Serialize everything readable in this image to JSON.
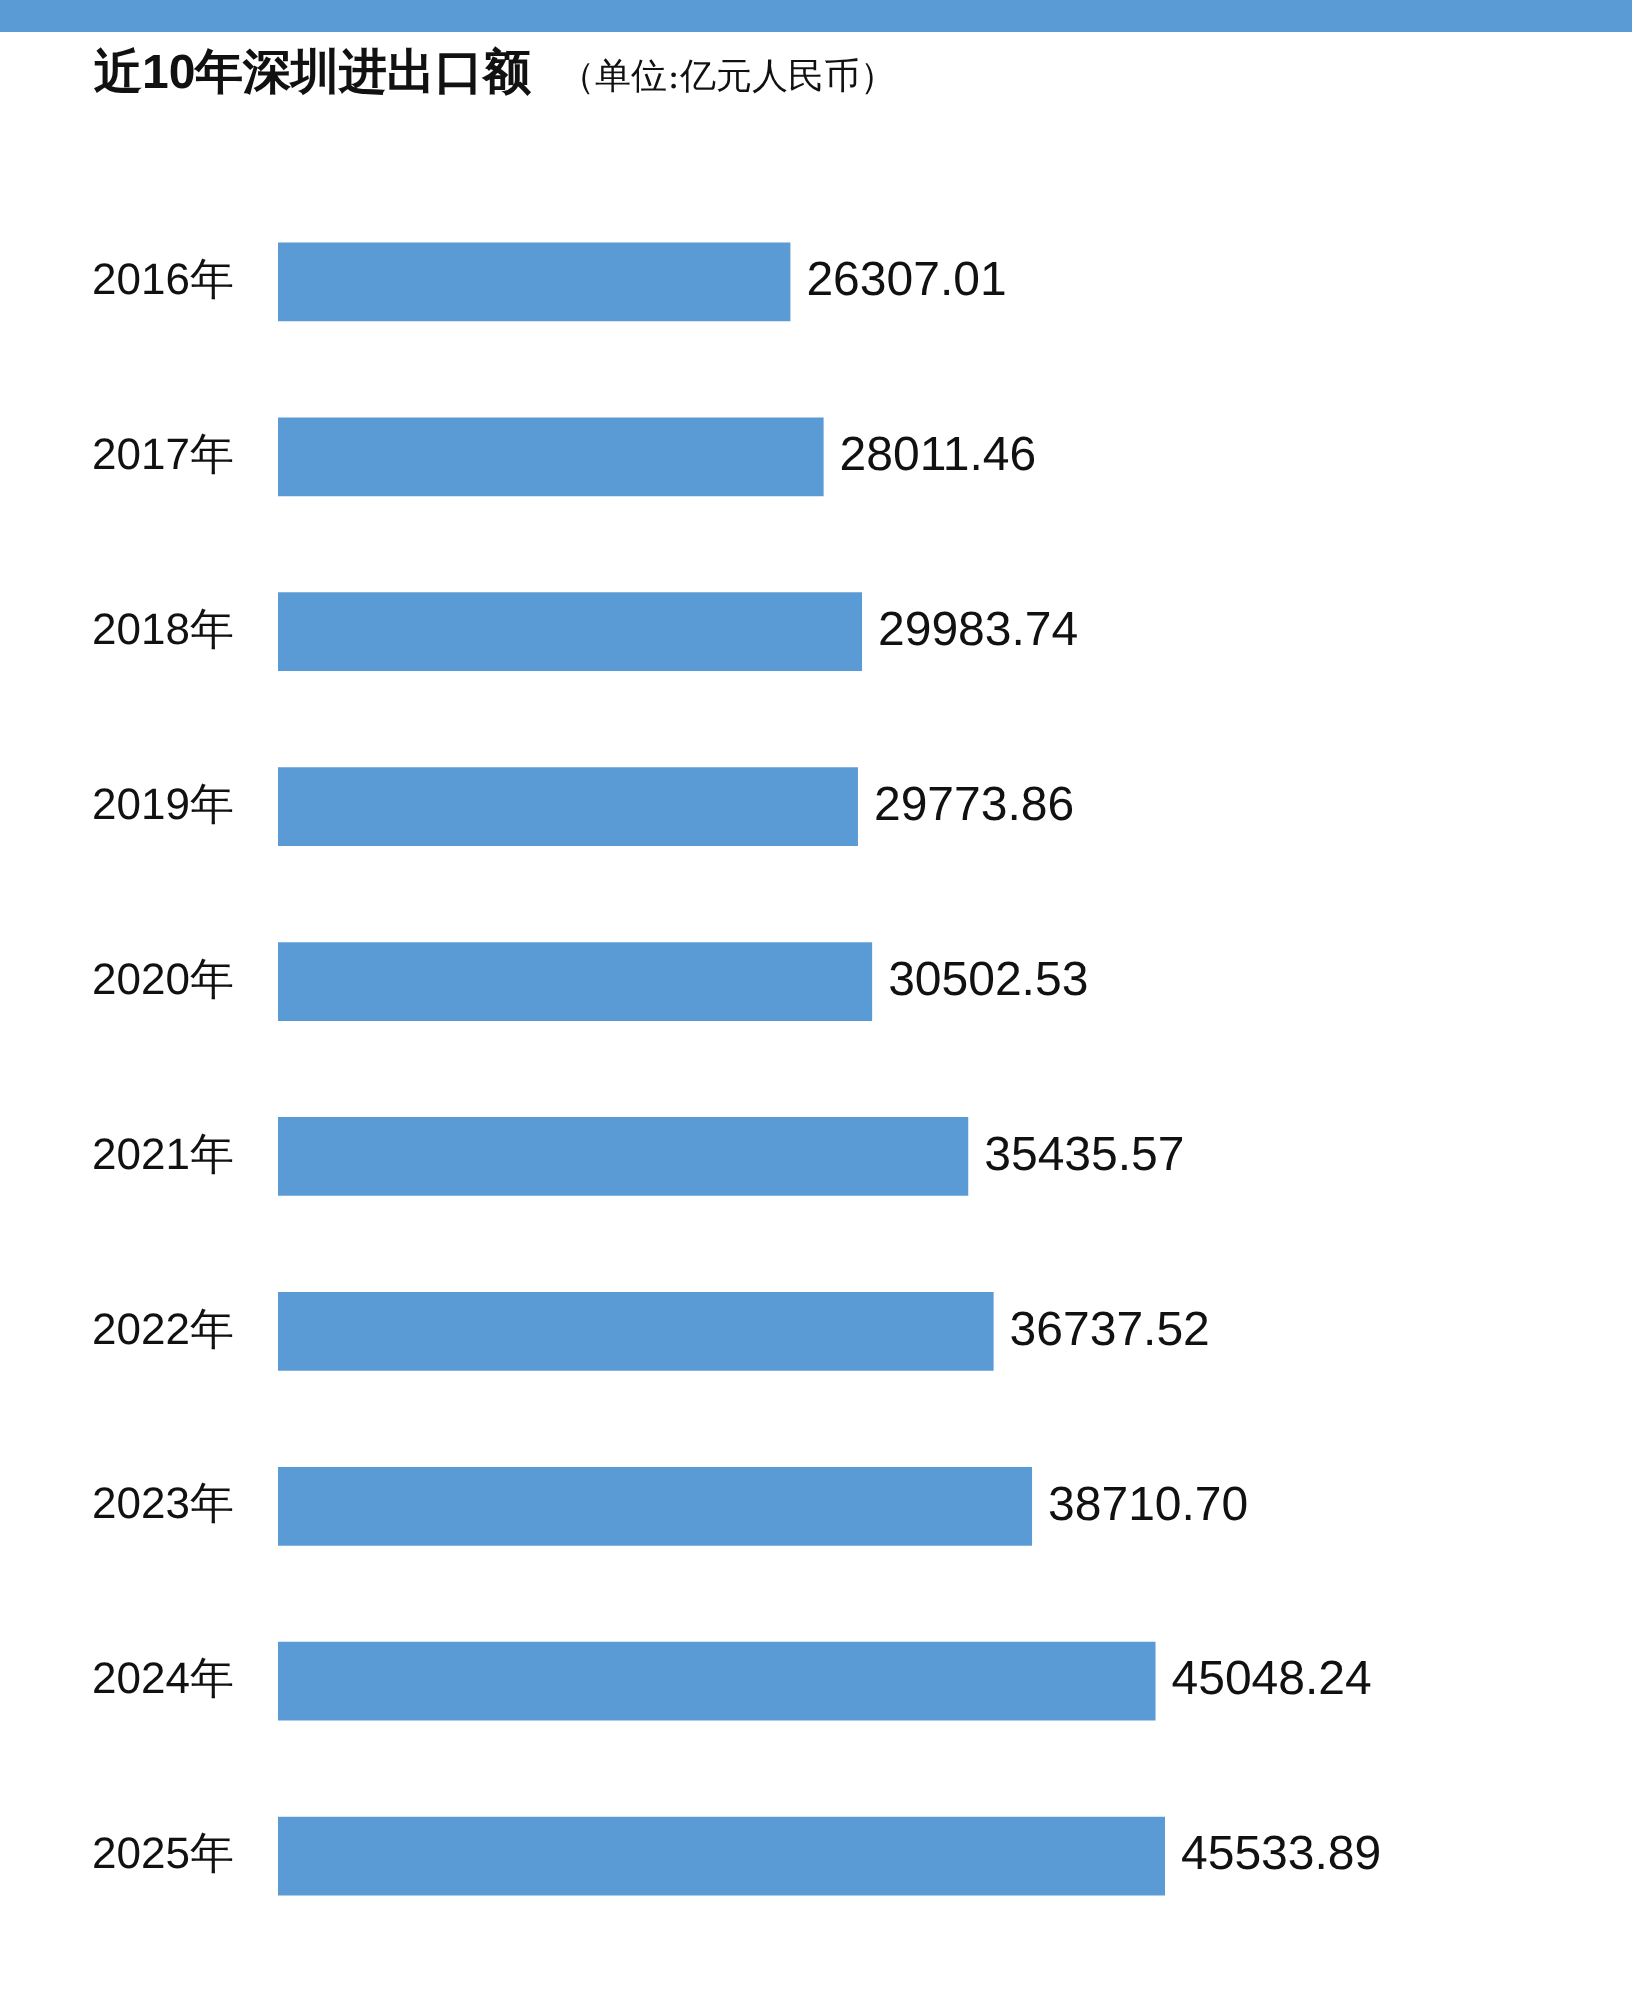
{
  "chart_data": {
    "type": "bar",
    "orientation": "horizontal",
    "title": "近10年深圳进出口额",
    "subtitle": "（单位:亿元人民币）",
    "categories": [
      "2016年",
      "2017年",
      "2018年",
      "2019年",
      "2020年",
      "2021年",
      "2022年",
      "2023年",
      "2024年",
      "2025年"
    ],
    "values": [
      26307.01,
      28011.46,
      29983.74,
      29773.86,
      30502.53,
      35435.57,
      36737.52,
      38710.7,
      45048.24,
      45533.89
    ],
    "value_labels": [
      "26307.01",
      "28011.46",
      "29983.74",
      "29773.86",
      "30502.53",
      "35435.57",
      "36737.52",
      "38710.70",
      "45048.24",
      "45533.89"
    ],
    "color": "#5b9bd5",
    "tick_labels": "y",
    "grid": false,
    "legend": false
  }
}
